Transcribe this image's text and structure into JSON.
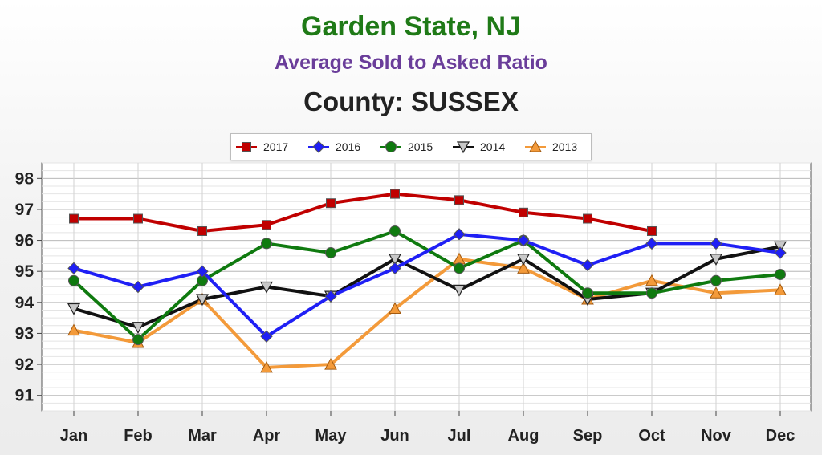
{
  "chart_data": {
    "type": "line",
    "title": "Garden State, NJ",
    "subtitle": "Average Sold to Asked Ratio",
    "subtitle2": "County: SUSSEX",
    "title_color": "#1f7a17",
    "subtitle_color": "#6a3d9a",
    "categories": [
      "Jan",
      "Feb",
      "Mar",
      "Apr",
      "May",
      "Jun",
      "Jul",
      "Aug",
      "Sep",
      "Oct",
      "Nov",
      "Dec"
    ],
    "ylim": [
      90.5,
      98.5
    ],
    "yticks": [
      91,
      92,
      93,
      94,
      95,
      96,
      97,
      98
    ],
    "grid": true,
    "legend_position": "top-center",
    "series": [
      {
        "name": "2017",
        "color": "#c00000",
        "marker": "square",
        "values": [
          96.7,
          96.7,
          96.3,
          96.5,
          97.2,
          97.5,
          97.3,
          96.9,
          96.7,
          96.3,
          null,
          null
        ]
      },
      {
        "name": "2016",
        "color": "#1f1ff5",
        "marker": "diamond",
        "values": [
          95.1,
          94.5,
          95.0,
          92.9,
          94.2,
          95.1,
          96.2,
          96.0,
          95.2,
          95.9,
          95.9,
          95.6
        ]
      },
      {
        "name": "2015",
        "color": "#0f7a0f",
        "marker": "circle",
        "values": [
          94.7,
          92.8,
          94.7,
          95.9,
          95.6,
          96.3,
          95.1,
          96.0,
          94.3,
          94.3,
          94.7,
          94.9
        ]
      },
      {
        "name": "2014",
        "color": "#111111",
        "marker": "triangle-down",
        "values": [
          93.8,
          93.2,
          94.1,
          94.5,
          94.2,
          95.4,
          94.4,
          95.4,
          94.1,
          94.3,
          95.4,
          95.8
        ]
      },
      {
        "name": "2013",
        "color": "#f39a3a",
        "marker": "triangle-up",
        "values": [
          93.1,
          92.7,
          94.1,
          91.9,
          92.0,
          93.8,
          95.4,
          95.1,
          94.1,
          94.7,
          94.3,
          94.4
        ]
      }
    ]
  }
}
